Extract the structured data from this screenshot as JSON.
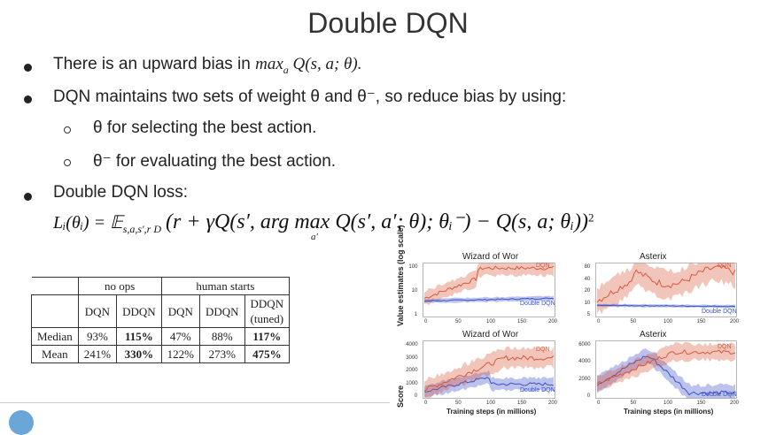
{
  "title": "Double DQN",
  "bullets": {
    "b1_text": "There is an upward bias in ",
    "b1_math": "max",
    "b1_sub": "a",
    "b1_math2": " Q(s, a; θ).",
    "b2": "DQN maintains two sets of weight θ and θ⁻, so reduce bias by using:",
    "sub1": "θ for selecting the best action.",
    "sub2": "θ⁻ for evaluating the best action.",
    "b3": "Double DQN loss:"
  },
  "formula": {
    "lhs": "L",
    "rest": "Lᵢ(θᵢ) = 𝔼",
    "sub": "s,a,s′,r",
    "d": "D",
    "body": "(r + γQ(s′, arg max Q(s′, a′; θ); θᵢ⁻) − Q(s, a; θᵢ))",
    "argsub": "a′",
    "pow": "2"
  },
  "table": {
    "group_headers": [
      "no ops",
      "human starts"
    ],
    "col_headers": [
      "DQN",
      "DDQN",
      "DQN",
      "DDQN",
      "DDQN"
    ],
    "tuned": "(tuned)",
    "rows": [
      {
        "label": "Median",
        "cells": [
          "93%",
          "115%",
          "47%",
          "88%",
          "117%"
        ]
      },
      {
        "label": "Mean",
        "cells": [
          "241%",
          "330%",
          "122%",
          "273%",
          "475%"
        ]
      }
    ]
  },
  "chart_data": [
    {
      "type": "line",
      "title": "Wizard of Wor",
      "ylabel": "Value estimates (log scale)",
      "yticks": [
        "100",
        "10",
        "1"
      ],
      "xticks": [
        "0",
        "50",
        "100",
        "150",
        "200"
      ],
      "series": [
        {
          "name": "DQN",
          "color": "#d9583b"
        },
        {
          "name": "Double DQN",
          "color": "#3b50c8"
        }
      ]
    },
    {
      "type": "line",
      "title": "Asterix",
      "yticks": [
        "80",
        "40",
        "20",
        "10",
        "5"
      ],
      "xticks": [
        "0",
        "50",
        "100",
        "150",
        "200"
      ],
      "series": [
        {
          "name": "DQN",
          "color": "#d9583b"
        },
        {
          "name": "Double DQN",
          "color": "#3b50c8"
        }
      ]
    },
    {
      "type": "line",
      "title": "Wizard of Wor",
      "ylabel": "Score",
      "xlabel": "Training steps (in millions)",
      "yticks": [
        "4000",
        "3000",
        "2000",
        "1000",
        "0"
      ],
      "xticks": [
        "0",
        "50",
        "100",
        "150",
        "200"
      ],
      "series": [
        {
          "name": "Double DQN",
          "color": "#3b50c8"
        },
        {
          "name": "DQN",
          "color": "#d9583b"
        }
      ]
    },
    {
      "type": "line",
      "title": "Asterix",
      "xlabel": "Training steps (in millions)",
      "yticks": [
        "6000",
        "4000",
        "2000",
        "0"
      ],
      "xticks": [
        "0",
        "50",
        "100",
        "150",
        "200"
      ],
      "series": [
        {
          "name": "Double DQN",
          "color": "#3b50c8"
        },
        {
          "name": "DQN",
          "color": "#d9583b"
        }
      ]
    }
  ]
}
